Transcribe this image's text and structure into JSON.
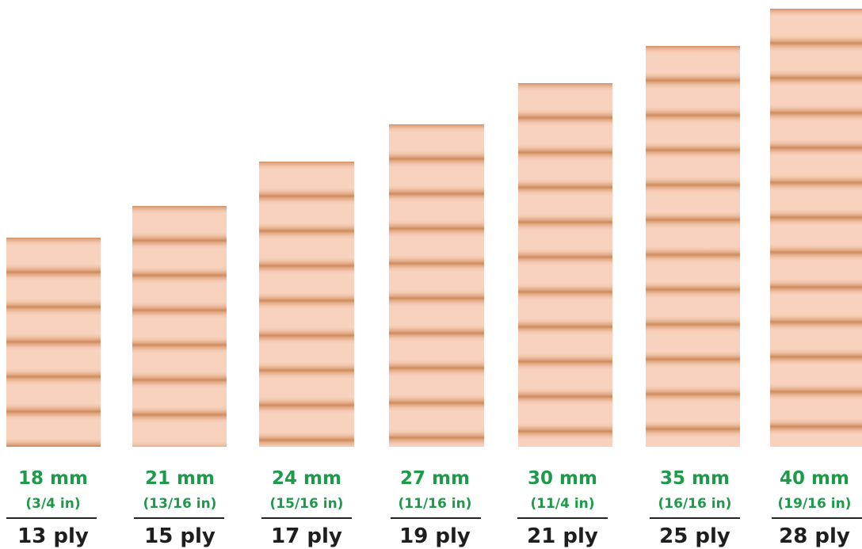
{
  "panels": [
    {
      "thickness_mm": "18 mm",
      "thickness_in": "(3/4 in)",
      "ply": "13 ply",
      "layers": 13
    },
    {
      "thickness_mm": "21 mm",
      "thickness_in": "(13/16 in)",
      "ply": "15 ply",
      "layers": 15
    },
    {
      "thickness_mm": "24 mm",
      "thickness_in": "(15/16 in)",
      "ply": "17 ply",
      "layers": 17
    },
    {
      "thickness_mm": "27 mm",
      "thickness_in": "(11/16 in)",
      "ply": "19 ply",
      "layers": 19
    },
    {
      "thickness_mm": "30 mm",
      "thickness_in": "(11/4 in)",
      "ply": "21 ply",
      "layers": 21
    },
    {
      "thickness_mm": "35 mm",
      "thickness_in": "(16/16 in)",
      "ply": "25 ply",
      "layers": 25
    },
    {
      "thickness_mm": "40 mm",
      "thickness_in": "(19/16 in)",
      "ply": "28 ply",
      "layers": 28
    }
  ],
  "colors": {
    "wood_light": "#f9d2be",
    "wood_glue_line": "#d38e5e",
    "metric_text": "#1f9a4b",
    "ply_text": "#1e1e1e"
  }
}
